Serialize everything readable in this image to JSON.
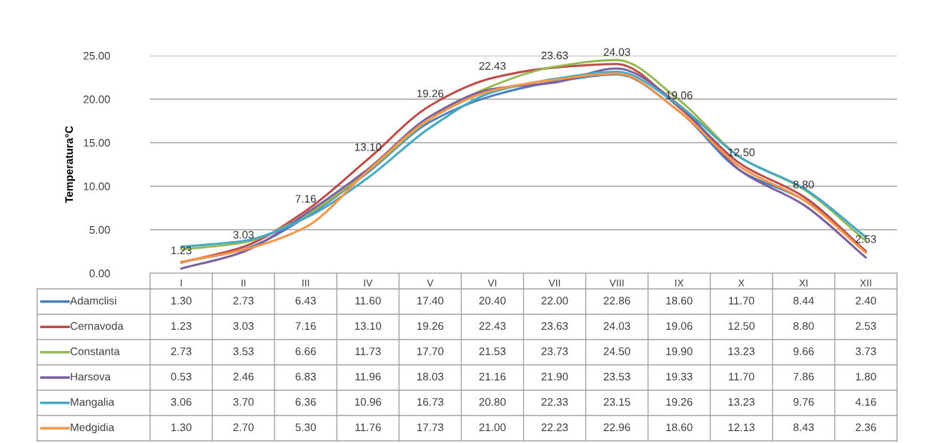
{
  "chart_data": {
    "type": "line",
    "ylabel": "Temperatura°C",
    "categories": [
      "I",
      "II",
      "III",
      "IV",
      "V",
      "VI",
      "VII",
      "VIII",
      "IX",
      "X",
      "XI",
      "XII"
    ],
    "ylim": [
      0,
      25
    ],
    "yticks": [
      {
        "value": 0,
        "label": "0.00"
      },
      {
        "value": 5,
        "label": "5.00"
      },
      {
        "value": 10,
        "label": "10.00"
      },
      {
        "value": 15,
        "label": "15.00"
      },
      {
        "value": 20,
        "label": "20.00"
      },
      {
        "value": 25,
        "label": "25.00"
      }
    ],
    "grid": "y",
    "legend": "bottom",
    "marker": "none",
    "line_style": "solid",
    "annotations": [
      {
        "text": "1.23",
        "x": "I",
        "y": 1.23
      },
      {
        "text": "3.03",
        "x": "II",
        "y": 3.03
      },
      {
        "text": "7.16",
        "x": "III",
        "y": 7.16
      },
      {
        "text": "13.10",
        "x": "IV",
        "y": 13.1
      },
      {
        "text": "19.26",
        "x": "V",
        "y": 19.26
      },
      {
        "text": "22.43",
        "x": "VI",
        "y": 22.43
      },
      {
        "text": "23.63",
        "x": "VII",
        "y": 23.63
      },
      {
        "text": "24.03",
        "x": "VIII",
        "y": 24.03
      },
      {
        "text": "19.06",
        "x": "IX",
        "y": 19.06
      },
      {
        "text": "12.50",
        "x": "X",
        "y": 12.5
      },
      {
        "text": "8.80",
        "x": "XI",
        "y": 8.8
      },
      {
        "text": "2.53",
        "x": "XII",
        "y": 2.53
      }
    ],
    "series": [
      {
        "name": "Adamclisi",
        "color": "#4a7ebb",
        "values": [
          1.3,
          2.73,
          6.43,
          11.6,
          17.4,
          20.4,
          22.0,
          22.86,
          18.6,
          11.7,
          8.44,
          2.4
        ],
        "value_labels": [
          "1.30",
          "2.73",
          "6.43",
          "11.60",
          "17.40",
          "20.40",
          "22.00",
          "22.86",
          "18.60",
          "11.70",
          "8.44",
          "2.40"
        ]
      },
      {
        "name": "Cernavoda",
        "color": "#be4b48",
        "values": [
          1.23,
          3.03,
          7.16,
          13.1,
          19.26,
          22.43,
          23.63,
          24.03,
          19.06,
          12.5,
          8.8,
          2.53
        ],
        "value_labels": [
          "1.23",
          "3.03",
          "7.16",
          "13.10",
          "19.26",
          "22.43",
          "23.63",
          "24.03",
          "19.06",
          "12.50",
          "8.80",
          "2.53"
        ]
      },
      {
        "name": "Constanta",
        "color": "#98b954",
        "values": [
          2.73,
          3.53,
          6.66,
          11.73,
          17.7,
          21.53,
          23.73,
          24.5,
          19.9,
          13.23,
          9.66,
          3.73
        ],
        "value_labels": [
          "2.73",
          "3.53",
          "6.66",
          "11.73",
          "17.70",
          "21.53",
          "23.73",
          "24.50",
          "19.90",
          "13.23",
          "9.66",
          "3.73"
        ]
      },
      {
        "name": "Harsova",
        "color": "#7d60a0",
        "values": [
          0.53,
          2.46,
          6.83,
          11.96,
          18.03,
          21.16,
          21.9,
          23.53,
          19.33,
          11.7,
          7.86,
          1.8
        ],
        "value_labels": [
          "0.53",
          "2.46",
          "6.83",
          "11.96",
          "18.03",
          "21.16",
          "21.90",
          "23.53",
          "19.33",
          "11.70",
          "7.86",
          "1.80"
        ]
      },
      {
        "name": "Mangalia",
        "color": "#46aac5",
        "values": [
          3.06,
          3.7,
          6.36,
          10.96,
          16.73,
          20.8,
          22.33,
          23.15,
          19.26,
          13.23,
          9.76,
          4.16
        ],
        "value_labels": [
          "3.06",
          "3.70",
          "6.36",
          "10.96",
          "16.73",
          "20.80",
          "22.33",
          "23.15",
          "19.26",
          "13.23",
          "9.76",
          "4.16"
        ]
      },
      {
        "name": "Medgidia",
        "color": "#f79646",
        "values": [
          1.3,
          2.7,
          5.3,
          11.76,
          17.73,
          21.0,
          22.23,
          22.96,
          18.6,
          12.13,
          8.43,
          2.36
        ],
        "value_labels": [
          "1.30",
          "2.70",
          "5.30",
          "11.76",
          "17.73",
          "21.00",
          "22.23",
          "22.96",
          "18.60",
          "12.13",
          "8.43",
          "2.36"
        ]
      }
    ]
  }
}
